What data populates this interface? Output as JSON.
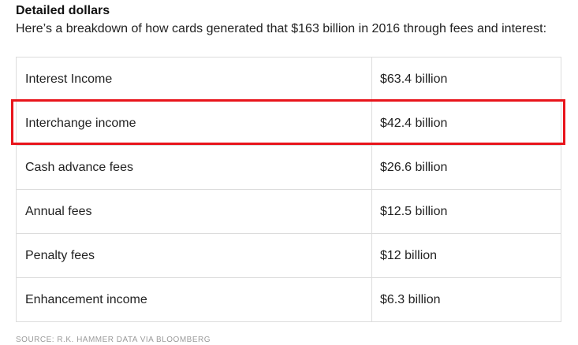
{
  "article": {
    "heading": "Detailed dollars",
    "intro": "Here’s a breakdown of how cards generated that $163 billion in 2016 through fees and interest:",
    "source": "SOURCE: R.K. HAMMER DATA VIA BLOOMBERG"
  },
  "table": {
    "rows": [
      {
        "label": "Interest Income",
        "value": "$63.4 billion"
      },
      {
        "label": "Interchange income",
        "value": "$42.4 billion"
      },
      {
        "label": "Cash advance fees",
        "value": "$26.6 billion"
      },
      {
        "label": "Annual fees",
        "value": "$12.5 billion"
      },
      {
        "label": "Penalty fees",
        "value": "$12 billion"
      },
      {
        "label": "Enhancement income",
        "value": "$6.3 billion"
      }
    ]
  },
  "highlight": {
    "color": "#e8141b"
  }
}
